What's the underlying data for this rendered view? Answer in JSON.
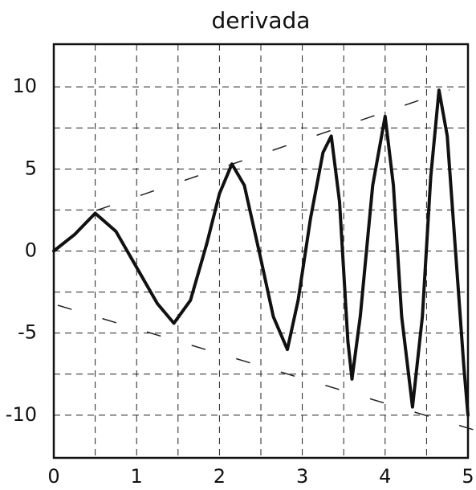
{
  "chart_data": {
    "type": "line",
    "title": "derivada",
    "x": [
      0,
      0.25,
      0.5,
      0.75,
      1.0,
      1.25,
      1.45,
      1.65,
      1.85,
      2.0,
      2.15,
      2.3,
      2.5,
      2.65,
      2.82,
      2.95,
      3.1,
      3.25,
      3.35,
      3.45,
      3.55,
      3.6,
      3.7,
      3.85,
      4.0,
      4.1,
      4.2,
      4.33,
      4.45,
      4.55,
      4.65,
      4.75,
      4.85,
      4.95,
      5
    ],
    "values": [
      0,
      1.0,
      2.3,
      1.2,
      -1.0,
      -3.2,
      -4.4,
      -3.0,
      0.5,
      3.5,
      5.3,
      4.0,
      -0.5,
      -4.0,
      -6.0,
      -3.0,
      2.0,
      6.0,
      7.0,
      3.0,
      -5.5,
      -7.8,
      -4.0,
      4.0,
      8.2,
      4.0,
      -4.0,
      -9.5,
      -4.0,
      4.5,
      9.8,
      7.0,
      0,
      -7,
      -10
    ],
    "color": "#111111",
    "xlim": [
      0,
      5
    ],
    "xticks": [
      0,
      1,
      2,
      3,
      4,
      5
    ],
    "ylim": [
      -12.6,
      12.6
    ],
    "yticks": [
      -10,
      -5,
      0,
      5,
      10
    ],
    "grid": true
  }
}
